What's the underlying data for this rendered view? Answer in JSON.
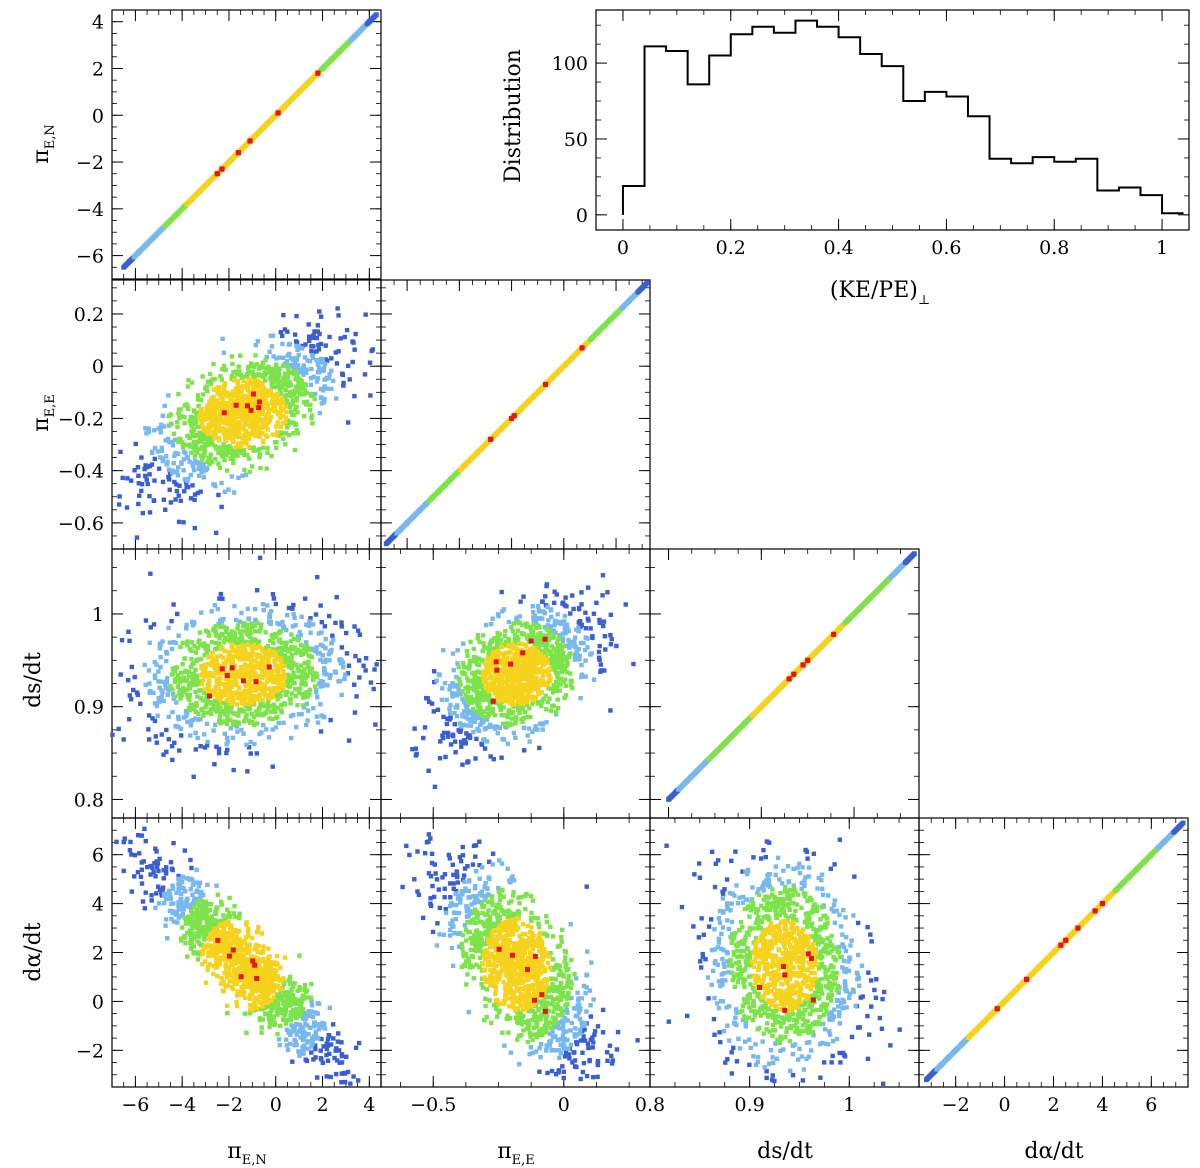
{
  "colors": {
    "density_1": "#3a5fd0",
    "density_2": "#78b8ee",
    "density_3": "#7de34a",
    "density_4": "#f5d21c",
    "density_5": "#e8141b",
    "axis": "#000000",
    "background": "#ffffff"
  },
  "chart_data": [
    {
      "id": "hist",
      "type": "histogram-step",
      "xlabel": "(KE/PE)",
      "xlabel_subscript": "⊥",
      "ylabel": "Distribution",
      "xlim": [
        -0.05,
        1.05
      ],
      "ylim": [
        -10,
        135
      ],
      "xticks": [
        0,
        0.2,
        0.4,
        0.6,
        0.8,
        1
      ],
      "xticklabels": [
        "0",
        "0.2",
        "0.4",
        "0.6",
        "0.8",
        "1"
      ],
      "yticks": [
        0,
        50,
        100
      ],
      "yticklabels": [
        "0",
        "50",
        "100"
      ],
      "bin_edges": [
        0,
        0.04,
        0.08,
        0.12,
        0.16,
        0.2,
        0.24,
        0.28,
        0.32,
        0.36,
        0.4,
        0.44,
        0.48,
        0.52,
        0.56,
        0.6,
        0.64,
        0.68,
        0.72,
        0.76,
        0.8,
        0.84,
        0.88,
        0.92,
        0.96,
        1.0,
        1.04
      ],
      "values": [
        19,
        111,
        108,
        86,
        105,
        119,
        124,
        120,
        128,
        124,
        117,
        106,
        98,
        75,
        81,
        78,
        65,
        37,
        34,
        38,
        35,
        37,
        16,
        18,
        13,
        1
      ]
    },
    {
      "id": "scatter_piEE_vs_piEN",
      "type": "scatter",
      "x_param": "piEN",
      "y_param": "piEE",
      "xlim": [
        -7,
        4.5
      ],
      "ylim": [
        -0.7,
        0.33
      ],
      "corr": 0.7,
      "mean_x": -1.4,
      "sd_x": 2.0,
      "mean_y": -0.18,
      "sd_y": 0.14
    },
    {
      "id": "scatter_dsdt_vs_piEN",
      "type": "scatter",
      "x_param": "piEN",
      "y_param": "dsdt",
      "xlim": [
        -7,
        4.5
      ],
      "ylim": [
        0.78,
        1.07
      ],
      "corr": 0.2,
      "mean_x": -1.4,
      "sd_x": 2.0,
      "mean_y": 0.935,
      "sd_y": 0.035
    },
    {
      "id": "scatter_dsdt_vs_piEE",
      "type": "scatter",
      "x_param": "piEE",
      "y_param": "dsdt",
      "xlim": [
        -0.7,
        0.33
      ],
      "ylim": [
        0.78,
        1.07
      ],
      "corr": 0.55,
      "mean_x": -0.18,
      "sd_x": 0.14,
      "mean_y": 0.935,
      "sd_y": 0.035
    },
    {
      "id": "scatter_dalphadt_vs_piEN",
      "type": "scatter",
      "x_param": "piEN",
      "y_param": "dalphadt",
      "xlim": [
        -7,
        4.5
      ],
      "ylim": [
        -3.5,
        7.5
      ],
      "corr": -0.92,
      "mean_x": -1.4,
      "sd_x": 2.0,
      "mean_y": 1.5,
      "sd_y": 2.0
    },
    {
      "id": "scatter_dalphadt_vs_piEE",
      "type": "scatter",
      "x_param": "piEE",
      "y_param": "dalphadt",
      "xlim": [
        -0.7,
        0.33
      ],
      "ylim": [
        -3.5,
        7.5
      ],
      "corr": -0.72,
      "mean_x": -0.18,
      "sd_x": 0.14,
      "mean_y": 1.5,
      "sd_y": 2.0
    },
    {
      "id": "scatter_dalphadt_vs_dsdt",
      "type": "scatter",
      "x_param": "dsdt",
      "y_param": "dalphadt",
      "xlim": [
        0.8,
        1.07
      ],
      "ylim": [
        -3.5,
        7.5
      ],
      "corr": -0.1,
      "mean_x": 0.935,
      "sd_x": 0.035,
      "mean_y": 1.5,
      "sd_y": 2.0
    },
    {
      "id": "diag_piEN",
      "type": "line-diagonal",
      "xlim": [
        -7,
        4.5
      ],
      "ylim": [
        -7,
        4.5
      ],
      "segment": [
        -6.5,
        4.3
      ],
      "core": [
        -3.8,
        1.9
      ],
      "markers": [
        1.8,
        0.1,
        -1.1,
        -1.6,
        -2.3,
        -2.5
      ]
    },
    {
      "id": "diag_piEE",
      "type": "line-diagonal",
      "xlim": [
        -0.7,
        0.33
      ],
      "ylim": [
        -0.7,
        0.33
      ],
      "segment": [
        -0.68,
        0.32
      ],
      "core": [
        -0.4,
        0.1
      ],
      "markers": [
        0.07,
        -0.07,
        -0.19,
        -0.2,
        -0.28
      ]
    },
    {
      "id": "diag_dsdt",
      "type": "line-diagonal",
      "xlim": [
        0.78,
        1.07
      ],
      "ylim": [
        0.78,
        1.07
      ],
      "segment": [
        0.8,
        1.065
      ],
      "core": [
        0.89,
        0.99
      ],
      "markers": [
        0.978,
        0.95,
        0.945,
        0.935,
        0.93
      ]
    },
    {
      "id": "diag_dalphadt",
      "type": "line-diagonal",
      "xlim": [
        -3.5,
        7.5
      ],
      "ylim": [
        -3.5,
        7.5
      ],
      "segment": [
        -3.2,
        7.3
      ],
      "core": [
        -1.5,
        4.5
      ],
      "markers": [
        -0.3,
        0.9,
        2.3,
        2.5,
        3.0,
        3.7,
        4.0
      ]
    }
  ],
  "axes": {
    "piEN": {
      "label": "π",
      "label_sub": "E,N",
      "ticks": [
        -6,
        -4,
        -2,
        0,
        2,
        4
      ],
      "ticklabels": [
        "−6",
        "−4",
        "−2",
        "0",
        "2",
        "4"
      ]
    },
    "piEE": {
      "label": "π",
      "label_sub": "E,E",
      "ticks": [
        -0.6,
        -0.4,
        -0.2,
        0,
        0.2
      ],
      "ticklabels": [
        "−0.6",
        "−0.4",
        "−0.2",
        "0",
        "0.2"
      ],
      "xticks": [
        -0.5,
        0
      ],
      "xticklabels": [
        "−0.5",
        "0"
      ]
    },
    "dsdt": {
      "label": "ds/dt",
      "ticks": [
        0.8,
        0.9,
        1
      ],
      "ticklabels": [
        "0.8",
        "0.9",
        "1"
      ]
    },
    "dalphadt": {
      "label": "dα/dt",
      "ticks": [
        -2,
        0,
        2,
        4,
        6
      ],
      "ticklabels": [
        "−2",
        "0",
        "2",
        "4",
        "6"
      ]
    }
  }
}
